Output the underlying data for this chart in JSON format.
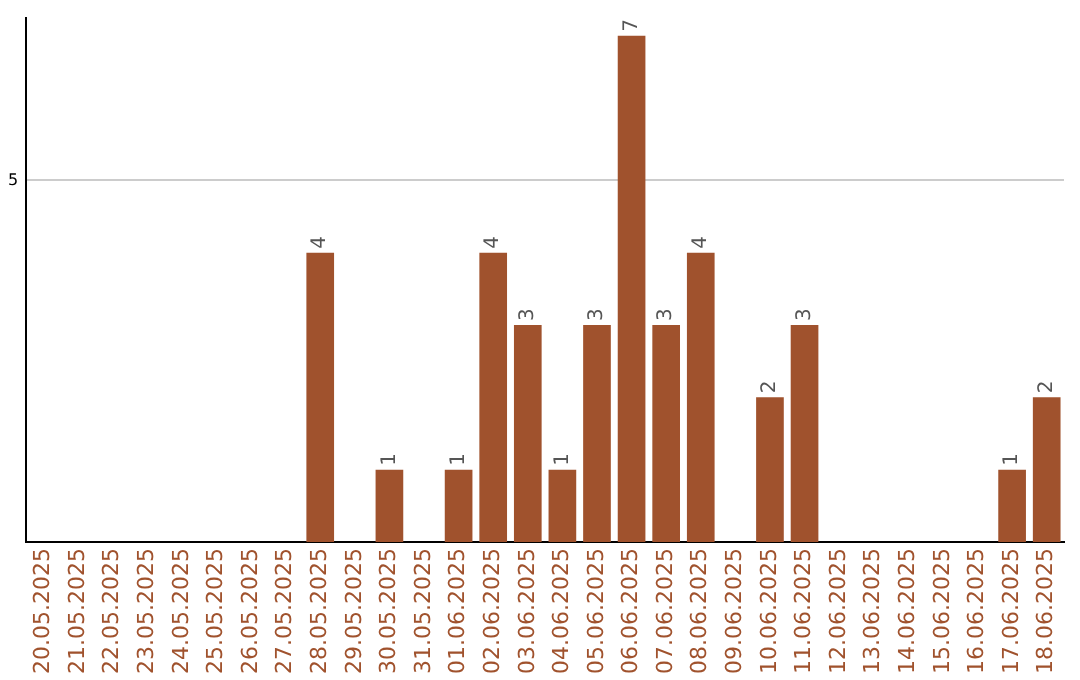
{
  "chart_data": {
    "type": "bar",
    "categories": [
      "20.05.2025",
      "21.05.2025",
      "22.05.2025",
      "23.05.2025",
      "24.05.2025",
      "25.05.2025",
      "26.05.2025",
      "27.05.2025",
      "28.05.2025",
      "29.05.2025",
      "30.05.2025",
      "31.05.2025",
      "01.06.2025",
      "02.06.2025",
      "03.06.2025",
      "04.06.2025",
      "05.06.2025",
      "06.06.2025",
      "07.06.2025",
      "08.06.2025",
      "09.06.2025",
      "10.06.2025",
      "11.06.2025",
      "12.06.2025",
      "13.06.2025",
      "14.06.2025",
      "15.06.2025",
      "16.06.2025",
      "17.06.2025",
      "18.06.2025"
    ],
    "values": [
      0,
      0,
      0,
      0,
      0,
      0,
      0,
      0,
      4,
      0,
      1,
      0,
      1,
      4,
      3,
      1,
      3,
      7,
      3,
      4,
      0,
      2,
      3,
      0,
      0,
      0,
      0,
      0,
      1,
      2
    ],
    "value_labels": [
      null,
      null,
      null,
      null,
      null,
      null,
      null,
      null,
      "4",
      null,
      "1",
      null,
      "1",
      "4",
      "3",
      "1",
      "3",
      "7",
      "3",
      "4",
      null,
      "2",
      "3",
      null,
      null,
      null,
      null,
      null,
      "1",
      "2"
    ],
    "color": "#a0522d",
    "ylim": [
      0,
      7.25
    ],
    "yticks": [
      5
    ],
    "grid": "y",
    "legend": false
  }
}
